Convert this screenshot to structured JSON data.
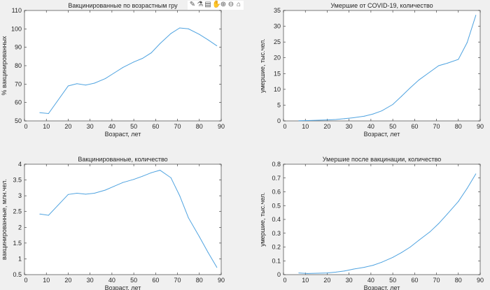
{
  "line_color": "#4fa3e0",
  "toolbar": {
    "icons": [
      "brush-icon",
      "datatip-icon",
      "legend-icon",
      "pan-icon",
      "zoom-in-icon",
      "zoom-out-icon",
      "home-icon"
    ],
    "glyphs": [
      "✎",
      "⚗",
      "▤",
      "✋",
      "⊕",
      "⊖",
      "⌂"
    ]
  },
  "chart_data": [
    {
      "type": "line",
      "title": "Вакцинированные по возрастным гру",
      "xlabel": "Возраст, лет",
      "ylabel": "% вакцинированных",
      "xlim": [
        0,
        90
      ],
      "ylim": [
        50,
        110
      ],
      "xticks": [
        0,
        10,
        20,
        30,
        40,
        50,
        60,
        70,
        80,
        90
      ],
      "yticks": [
        50,
        60,
        70,
        80,
        90,
        100,
        110
      ],
      "x": [
        7,
        11,
        20,
        24,
        28,
        32,
        37,
        41,
        45,
        50,
        54,
        58,
        62,
        67,
        71,
        75,
        80,
        84,
        88
      ],
      "y": [
        54.5,
        54,
        69,
        70.2,
        69.5,
        70.5,
        73,
        76,
        79,
        82,
        84,
        87,
        92,
        97.5,
        100.5,
        100,
        97,
        94,
        90.8
      ]
    },
    {
      "type": "line",
      "title": "Умершие от COVID-19, количество",
      "xlabel": "Возраст, лет",
      "ylabel": "умершие, тыс.чел.",
      "xlim": [
        0,
        90
      ],
      "ylim": [
        0,
        35
      ],
      "xticks": [
        0,
        10,
        20,
        30,
        40,
        50,
        60,
        70,
        80,
        90
      ],
      "yticks": [
        0,
        5,
        10,
        15,
        20,
        25,
        30,
        35
      ],
      "x": [
        7,
        11,
        20,
        24,
        28,
        32,
        37,
        41,
        45,
        50,
        54,
        58,
        62,
        67,
        71,
        75,
        80,
        84,
        88
      ],
      "y": [
        0.05,
        0.1,
        0.3,
        0.45,
        0.7,
        1.0,
        1.5,
        2.2,
        3.2,
        5.2,
        7.8,
        10.5,
        13,
        15.5,
        17.5,
        18.3,
        19.5,
        24.8,
        33.5
      ]
    },
    {
      "type": "line",
      "title": "Вакцинированные, количество",
      "xlabel": "Возраст, лет",
      "ylabel": "вакцинированные, млн.чел.",
      "xlim": [
        0,
        90
      ],
      "ylim": [
        0.5,
        4
      ],
      "xticks": [
        0,
        10,
        20,
        30,
        40,
        50,
        60,
        70,
        80,
        90
      ],
      "yticks": [
        0.5,
        1,
        1.5,
        2,
        2.5,
        3,
        3.5,
        4
      ],
      "x": [
        7,
        11,
        20,
        24,
        28,
        32,
        37,
        41,
        45,
        50,
        54,
        58,
        62,
        67,
        71,
        75,
        80,
        84,
        88
      ],
      "y": [
        2.42,
        2.38,
        3.04,
        3.08,
        3.05,
        3.08,
        3.18,
        3.3,
        3.42,
        3.52,
        3.62,
        3.73,
        3.81,
        3.57,
        3.0,
        2.3,
        1.7,
        1.2,
        0.73
      ]
    },
    {
      "type": "line",
      "title": "Умершие после вакцинации, количество",
      "xlabel": "Возраст, лет",
      "ylabel": "умершие, тыс.чел.",
      "xlim": [
        0,
        90
      ],
      "ylim": [
        0,
        0.8
      ],
      "xticks": [
        0,
        10,
        20,
        30,
        40,
        50,
        60,
        70,
        80,
        90
      ],
      "yticks": [
        0,
        0.1,
        0.2,
        0.3,
        0.4,
        0.5,
        0.6,
        0.7,
        0.8
      ],
      "x": [
        7,
        11,
        20,
        24,
        28,
        32,
        37,
        41,
        45,
        50,
        54,
        58,
        62,
        67,
        71,
        75,
        80,
        84,
        88
      ],
      "y": [
        0.012,
        0.008,
        0.012,
        0.018,
        0.027,
        0.04,
        0.053,
        0.068,
        0.09,
        0.125,
        0.16,
        0.2,
        0.25,
        0.31,
        0.37,
        0.44,
        0.53,
        0.625,
        0.73
      ]
    }
  ]
}
